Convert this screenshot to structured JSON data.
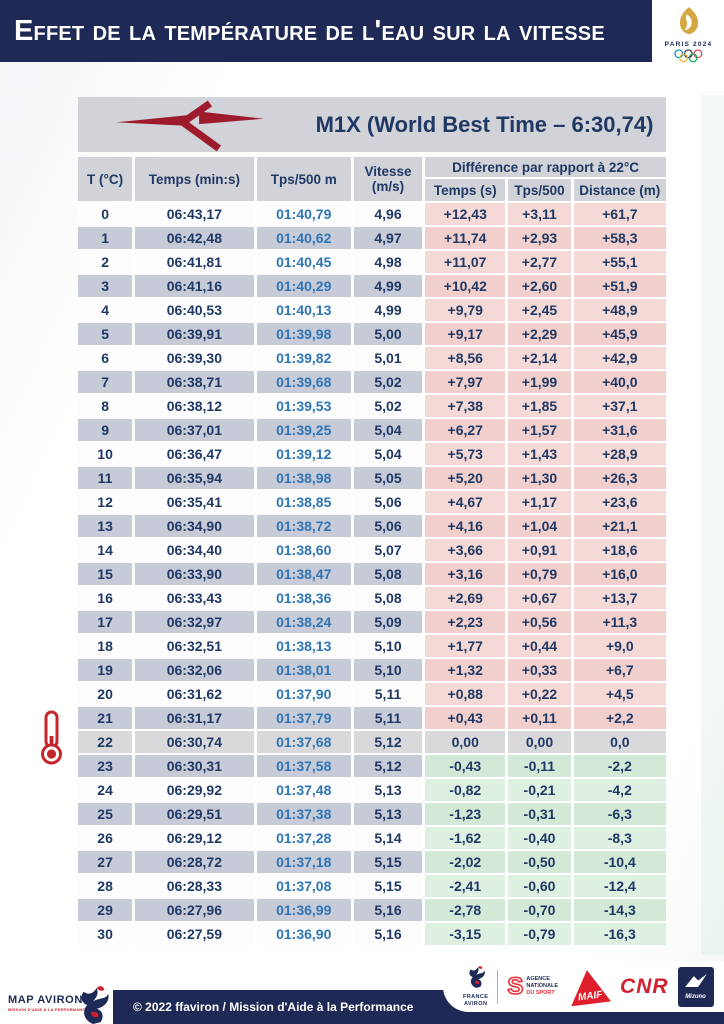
{
  "title_bar": {
    "title": "Effet de la température de l'eau sur la vitesse"
  },
  "paris2024": {
    "label": "PARIS 2024"
  },
  "boat_table": {
    "title": "M1X (World Best Time – 6:30,74)",
    "col_temperature": "T (°C)",
    "col_time": "Temps (min:s)",
    "col_split": "Tps/500 m",
    "col_speed": "Vitesse (m/s)",
    "diff_group": "Différence par rapport à 22°C",
    "col_diff_time": "Temps (s)",
    "col_diff_split": "Tps/500",
    "col_diff_distance": "Distance (m)",
    "reference_temperature": "22",
    "rows": [
      [
        "0",
        "06:43,17",
        "01:40,79",
        "4,96",
        "+12,43",
        "+3,11",
        "+61,7"
      ],
      [
        "1",
        "06:42,48",
        "01:40,62",
        "4,97",
        "+11,74",
        "+2,93",
        "+58,3"
      ],
      [
        "2",
        "06:41,81",
        "01:40,45",
        "4,98",
        "+11,07",
        "+2,77",
        "+55,1"
      ],
      [
        "3",
        "06:41,16",
        "01:40,29",
        "4,99",
        "+10,42",
        "+2,60",
        "+51,9"
      ],
      [
        "4",
        "06:40,53",
        "01:40,13",
        "4,99",
        "+9,79",
        "+2,45",
        "+48,9"
      ],
      [
        "5",
        "06:39,91",
        "01:39,98",
        "5,00",
        "+9,17",
        "+2,29",
        "+45,9"
      ],
      [
        "6",
        "06:39,30",
        "01:39,82",
        "5,01",
        "+8,56",
        "+2,14",
        "+42,9"
      ],
      [
        "7",
        "06:38,71",
        "01:39,68",
        "5,02",
        "+7,97",
        "+1,99",
        "+40,0"
      ],
      [
        "8",
        "06:38,12",
        "01:39,53",
        "5,02",
        "+7,38",
        "+1,85",
        "+37,1"
      ],
      [
        "9",
        "06:37,01",
        "01:39,25",
        "5,04",
        "+6,27",
        "+1,57",
        "+31,6"
      ],
      [
        "10",
        "06:36,47",
        "01:39,12",
        "5,04",
        "+5,73",
        "+1,43",
        "+28,9"
      ],
      [
        "11",
        "06:35,94",
        "01:38,98",
        "5,05",
        "+5,20",
        "+1,30",
        "+26,3"
      ],
      [
        "12",
        "06:35,41",
        "01:38,85",
        "5,06",
        "+4,67",
        "+1,17",
        "+23,6"
      ],
      [
        "13",
        "06:34,90",
        "01:38,72",
        "5,06",
        "+4,16",
        "+1,04",
        "+21,1"
      ],
      [
        "14",
        "06:34,40",
        "01:38,60",
        "5,07",
        "+3,66",
        "+0,91",
        "+18,6"
      ],
      [
        "15",
        "06:33,90",
        "01:38,47",
        "5,08",
        "+3,16",
        "+0,79",
        "+16,0"
      ],
      [
        "16",
        "06:33,43",
        "01:38,36",
        "5,08",
        "+2,69",
        "+0,67",
        "+13,7"
      ],
      [
        "17",
        "06:32,97",
        "01:38,24",
        "5,09",
        "+2,23",
        "+0,56",
        "+11,3"
      ],
      [
        "18",
        "06:32,51",
        "01:38,13",
        "5,10",
        "+1,77",
        "+0,44",
        "+9,0"
      ],
      [
        "19",
        "06:32,06",
        "01:38,01",
        "5,10",
        "+1,32",
        "+0,33",
        "+6,7"
      ],
      [
        "20",
        "06:31,62",
        "01:37,90",
        "5,11",
        "+0,88",
        "+0,22",
        "+4,5"
      ],
      [
        "21",
        "06:31,17",
        "01:37,79",
        "5,11",
        "+0,43",
        "+0,11",
        "+2,2"
      ],
      [
        "22",
        "06:30,74",
        "01:37,68",
        "5,12",
        "0,00",
        "0,00",
        "0,0"
      ],
      [
        "23",
        "06:30,31",
        "01:37,58",
        "5,12",
        "-0,43",
        "-0,11",
        "-2,2"
      ],
      [
        "24",
        "06:29,92",
        "01:37,48",
        "5,13",
        "-0,82",
        "-0,21",
        "-4,2"
      ],
      [
        "25",
        "06:29,51",
        "01:37,38",
        "5,13",
        "-1,23",
        "-0,31",
        "-6,3"
      ],
      [
        "26",
        "06:29,12",
        "01:37,28",
        "5,14",
        "-1,62",
        "-0,40",
        "-8,3"
      ],
      [
        "27",
        "06:28,72",
        "01:37,18",
        "5,15",
        "-2,02",
        "-0,50",
        "-10,4"
      ],
      [
        "28",
        "06:28,33",
        "01:37,08",
        "5,15",
        "-2,41",
        "-0,60",
        "-12,4"
      ],
      [
        "29",
        "06:27,96",
        "01:36,99",
        "5,16",
        "-2,78",
        "-0,70",
        "-14,3"
      ],
      [
        "30",
        "06:27,59",
        "01:36,90",
        "5,16",
        "-3,15",
        "-0,79",
        "-16,3"
      ]
    ]
  },
  "footer": {
    "map_logo": {
      "title": "MAP AVIRON",
      "subtitle": "MISSION D'AIDE À LA PERFORMANCE"
    },
    "copyright": "© 2022 ffaviron / Mission d'Aide à la Performance",
    "partners": {
      "france_aviron_line1": "FRANCE",
      "france_aviron_line2": "AVIRON",
      "ans_s": "S",
      "ans_line1": "AGENCE",
      "ans_line2": "NATIONALE",
      "ans_line3": "DU SPORT",
      "maif": "MAIF",
      "cnr": "CNR",
      "mizuno": "Mizuno"
    }
  },
  "colors": {
    "navy": "#1e2a55",
    "text_navy": "#1f3864",
    "split_blue": "#2e75b6",
    "header_gray": "#d2d3d9",
    "row_alt": "#c7cad7",
    "ref_gray": "#d9d9db",
    "pink": "#f2d4d1",
    "green": "#d7edda",
    "logo_red": "#9e1b2d",
    "thermo_red": "#c5262c",
    "gold": "#d6a843"
  }
}
